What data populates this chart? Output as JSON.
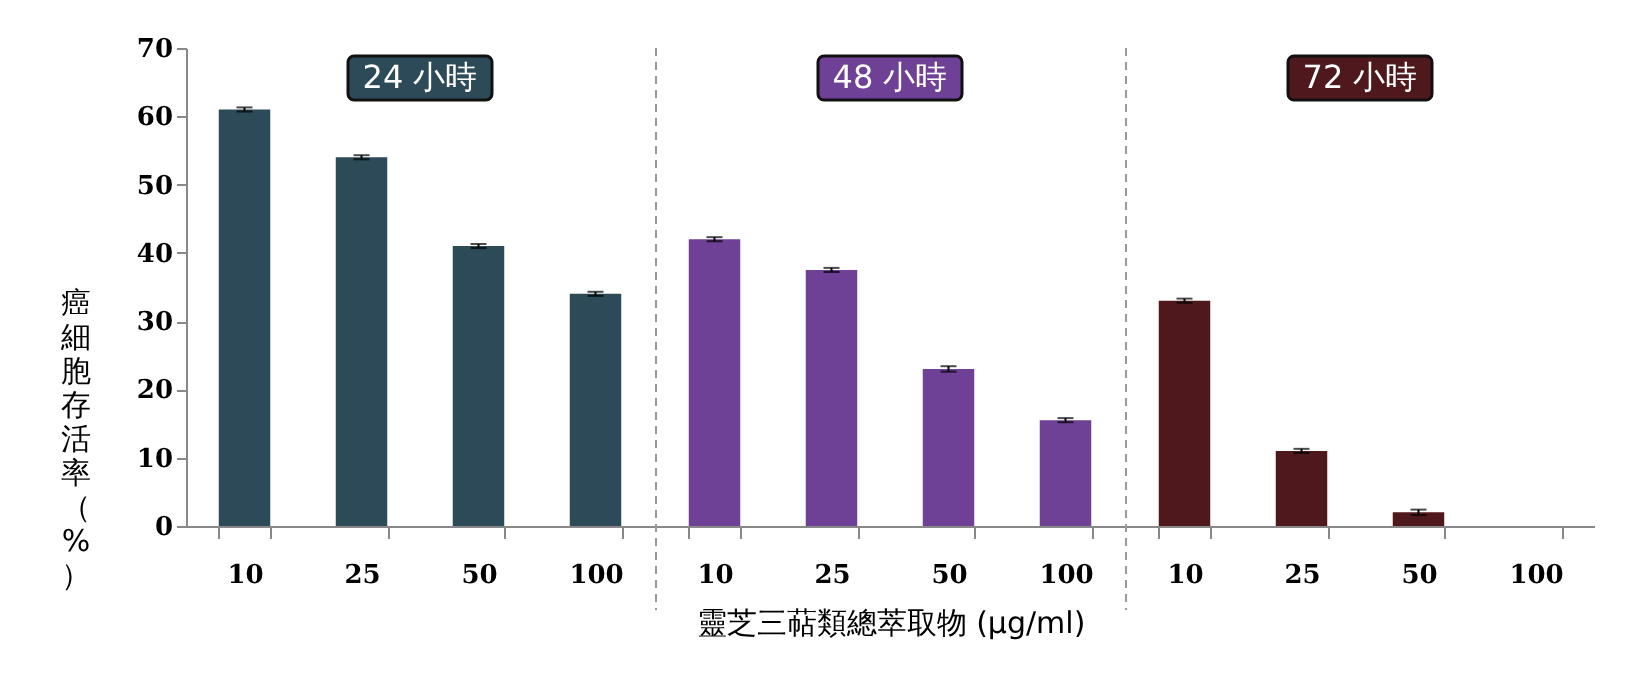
{
  "chart_data": [
    {
      "type": "bar",
      "title": "24 小時",
      "ylabel": "癌細胞存活率（%）",
      "categories": [
        "10",
        "25",
        "50",
        "100"
      ],
      "values": [
        61,
        54,
        41,
        34
      ],
      "errors": [
        0.3,
        0.3,
        0.3,
        0.3
      ],
      "color": "#2c4a57",
      "ylim": [
        0,
        70
      ],
      "yticks": [
        0,
        10,
        20,
        30,
        40,
        50,
        60,
        70
      ],
      "grid": false
    },
    {
      "type": "bar",
      "title": "48 小時",
      "xlabel": "靈芝三萜類總萃取物 (μg/ml)",
      "categories": [
        "10",
        "25",
        "50",
        "100"
      ],
      "values": [
        42,
        37.5,
        23,
        15.5
      ],
      "errors": [
        0.3,
        0.3,
        0.4,
        0.3
      ],
      "color": "#6e4196",
      "ylim": [
        0,
        70
      ],
      "grid": false,
      "tick_labels": "x"
    },
    {
      "type": "bar",
      "title": "72 小時",
      "categories": [
        "10",
        "25",
        "50",
        "100"
      ],
      "values": [
        33,
        11,
        2,
        0
      ],
      "errors": [
        0.3,
        0.3,
        0.4,
        null
      ],
      "color": "#4e181c",
      "ylim": [
        0,
        70
      ],
      "grid": false,
      "tick_labels": "x"
    }
  ]
}
